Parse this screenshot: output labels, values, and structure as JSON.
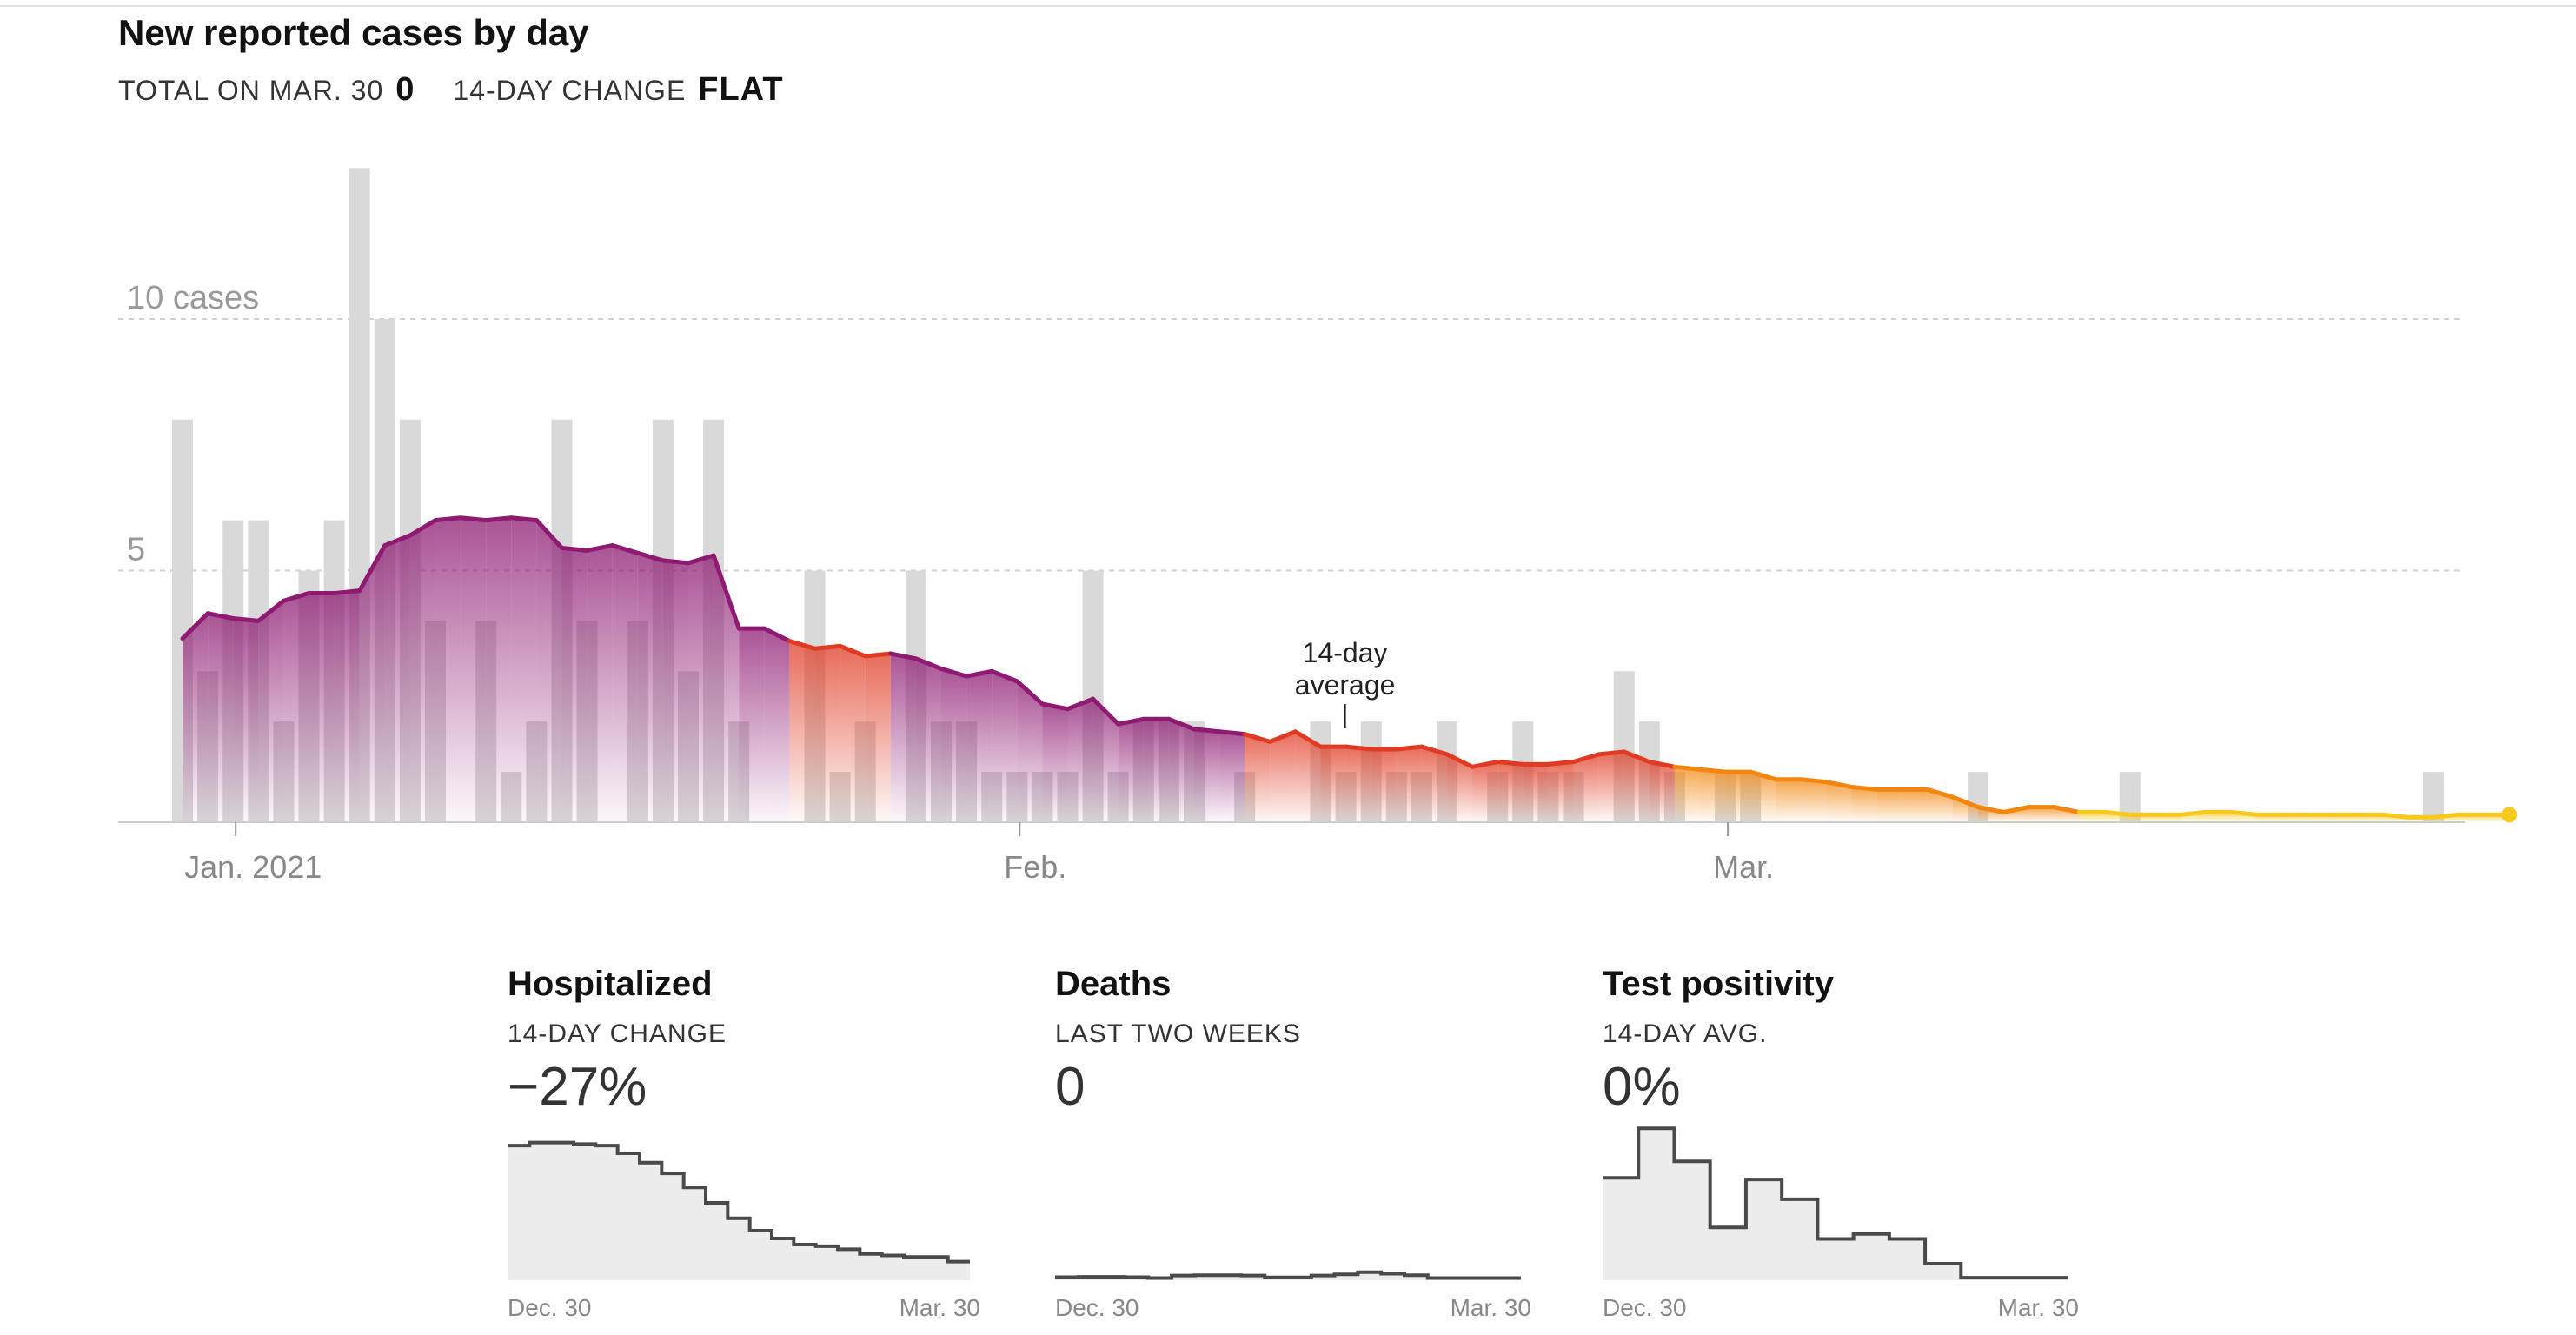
{
  "header": {
    "title": "New reported cases by day",
    "total_label": "TOTAL ON MAR. 30",
    "total_value": "0",
    "change_label": "14-DAY CHANGE",
    "change_value": "FLAT"
  },
  "chart_data": [
    {
      "type": "bar",
      "title": "New reported cases by day",
      "y_tick_labels": [
        "10 cases",
        "5"
      ],
      "y_ticks": [
        10,
        5
      ],
      "ylim": [
        0,
        13
      ],
      "x_tick_labels": [
        "Jan. 2021",
        "Feb.",
        "Mar."
      ],
      "x_ticks_day_index": [
        2,
        33,
        61
      ],
      "grid": "horizontal dashed",
      "annotation": "14-day\naverage",
      "series": [
        {
          "kind": "bars",
          "start_date": "Dec. 30",
          "end_date": "Mar. 30",
          "values": [
            8,
            3,
            6,
            6,
            2,
            5,
            6,
            13,
            10,
            8,
            4,
            0,
            4,
            1,
            2,
            8,
            4,
            0,
            4,
            8,
            3,
            8,
            2,
            0,
            0,
            5,
            1,
            2,
            0,
            5,
            2,
            2,
            1,
            1,
            1,
            1,
            5,
            1,
            2,
            2,
            2,
            0,
            1,
            0,
            0,
            2,
            1,
            2,
            1,
            1,
            2,
            0,
            1,
            2,
            1,
            1,
            0,
            3,
            2,
            1,
            0,
            1,
            1,
            0,
            0,
            0,
            0,
            0,
            0,
            0,
            0,
            1,
            0,
            0,
            0,
            0,
            0,
            1,
            0,
            0,
            0,
            0,
            0,
            0,
            0,
            0,
            0,
            0,
            0,
            1,
            0,
            0,
            0
          ]
        },
        {
          "kind": "line",
          "name": "14-day average",
          "values": [
            3.65,
            4.15,
            4.05,
            4.0,
            4.4,
            4.55,
            4.55,
            4.6,
            5.5,
            5.7,
            6.0,
            6.05,
            6.0,
            6.05,
            6.0,
            5.45,
            5.4,
            5.5,
            5.35,
            5.2,
            5.15,
            5.3,
            3.85,
            3.85,
            3.6,
            3.45,
            3.5,
            3.3,
            3.35,
            3.25,
            3.05,
            2.9,
            3.0,
            2.8,
            2.35,
            2.25,
            2.45,
            1.95,
            2.05,
            2.05,
            1.85,
            1.8,
            1.75,
            1.6,
            1.8,
            1.5,
            1.5,
            1.45,
            1.45,
            1.5,
            1.35,
            1.1,
            1.2,
            1.15,
            1.15,
            1.2,
            1.35,
            1.4,
            1.2,
            1.1,
            1.05,
            1.0,
            1.0,
            0.85,
            0.85,
            0.8,
            0.7,
            0.65,
            0.65,
            0.65,
            0.5,
            0.3,
            0.2,
            0.3,
            0.3,
            0.2,
            0.2,
            0.15,
            0.15,
            0.15,
            0.2,
            0.2,
            0.15,
            0.15,
            0.15,
            0.15,
            0.15,
            0.15,
            0.1,
            0.1,
            0.15,
            0.15,
            0.15
          ]
        }
      ]
    },
    {
      "type": "area",
      "title": "Hospitalized",
      "subtitle": "14-DAY CHANGE",
      "value": "−27%",
      "x_start_label": "Dec. 30",
      "x_end_label": "Mar. 30",
      "values": [
        8.7,
        8.9,
        8.9,
        8.8,
        8.7,
        8.2,
        7.6,
        6.9,
        6.0,
        5.0,
        4.0,
        3.2,
        2.7,
        2.3,
        2.2,
        2.0,
        1.7,
        1.6,
        1.5,
        1.5,
        1.2
      ]
    },
    {
      "type": "area",
      "title": "Deaths",
      "subtitle": "LAST TWO WEEKS",
      "value": "0",
      "x_start_label": "Dec. 30",
      "x_end_label": "Mar. 30",
      "values": [
        0.2,
        0.22,
        0.22,
        0.2,
        0.14,
        0.3,
        0.32,
        0.32,
        0.3,
        0.18,
        0.18,
        0.3,
        0.38,
        0.52,
        0.42,
        0.32,
        0.14,
        0.14,
        0.14,
        0.14
      ]
    },
    {
      "type": "area",
      "title": "Test positivity",
      "subtitle": "14-DAY AVG.",
      "value": "0%",
      "x_start_label": "Dec. 30",
      "x_end_label": "Mar. 30",
      "values": [
        6.2,
        9.2,
        7.2,
        3.2,
        6.1,
        4.9,
        2.5,
        2.8,
        2.5,
        1.0,
        0.15,
        0.15,
        0.15
      ]
    }
  ],
  "colors": {
    "bar": "#d9d9d9",
    "grid": "#cfcfcf",
    "axis": "#999999",
    "purple": "#8e1a72",
    "red": "#e03a22",
    "orange": "#f2860e",
    "yellow": "#f8c91d",
    "small_fill": "#ececec",
    "small_line": "#4a4a4a"
  }
}
